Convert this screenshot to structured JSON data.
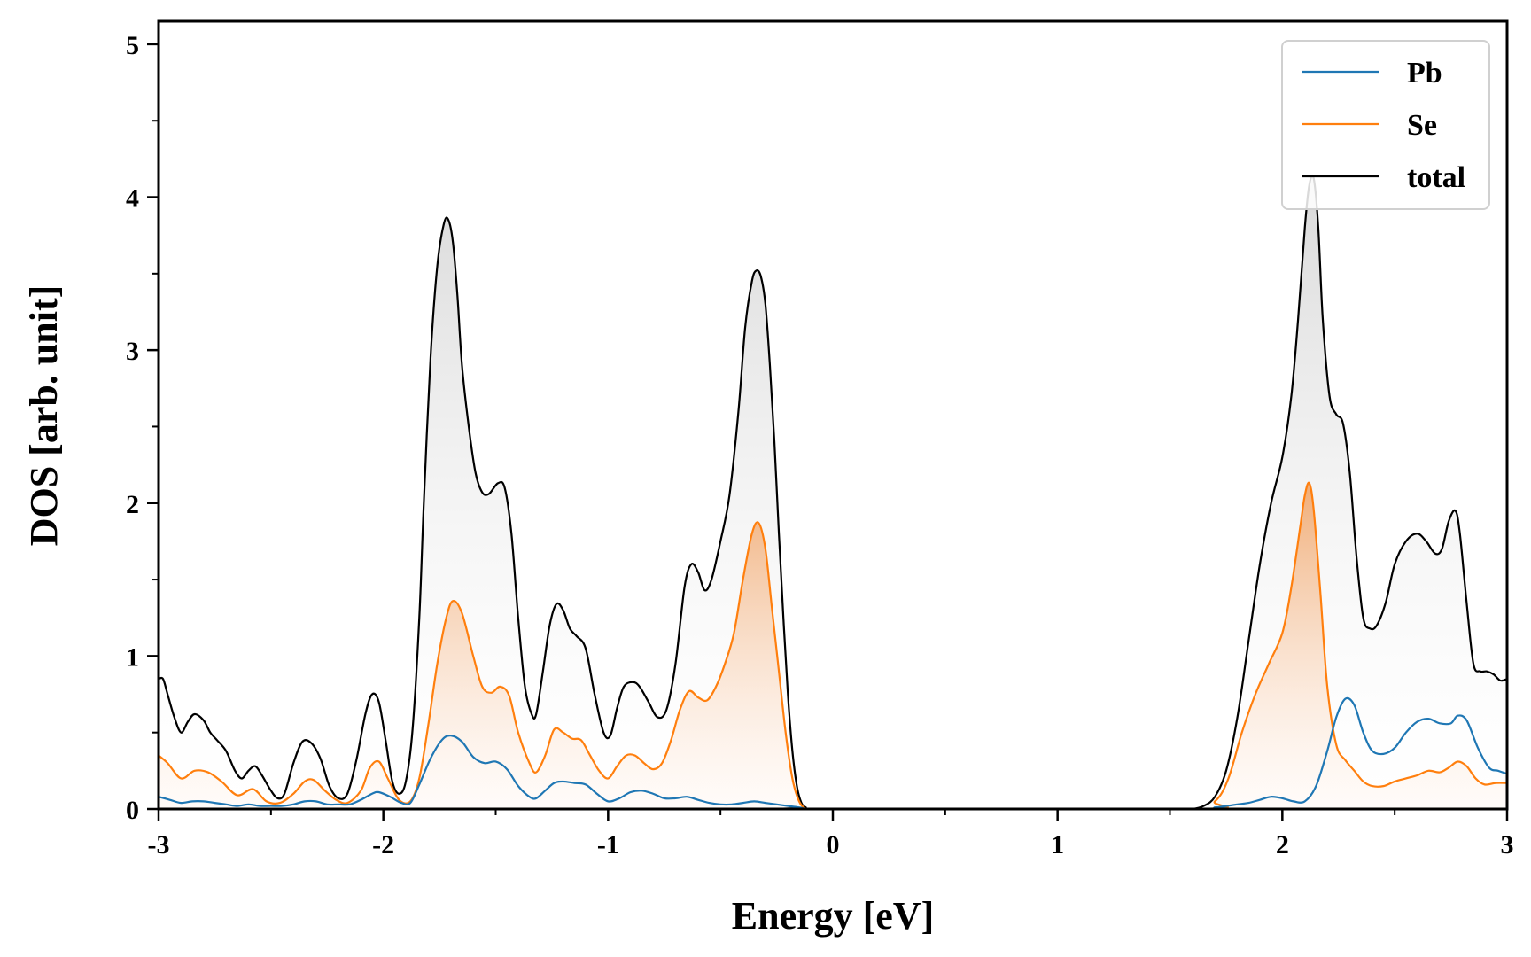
{
  "chart_data": {
    "type": "line",
    "title": "",
    "xlabel": "Energy [eV]",
    "ylabel": "DOS [arb. unit]",
    "xlim": [
      -3,
      3
    ],
    "ylim": [
      0,
      5.15
    ],
    "xticks": [
      -3,
      -2,
      -1,
      0,
      1,
      2,
      3
    ],
    "xtick_labels": [
      "-3",
      "-2",
      "-1",
      "0",
      "1",
      "2",
      "3"
    ],
    "yticks": [
      0,
      1,
      2,
      3,
      4,
      5
    ],
    "ytick_labels": [
      "0",
      "1",
      "2",
      "3",
      "4",
      "5"
    ],
    "grid": false,
    "legend_position": "top-right",
    "series": [
      {
        "name": "Pb",
        "color": "#1f77b4",
        "fill": false,
        "x": [
          -3.0,
          -2.95,
          -2.9,
          -2.85,
          -2.8,
          -2.75,
          -2.7,
          -2.65,
          -2.6,
          -2.55,
          -2.5,
          -2.45,
          -2.4,
          -2.35,
          -2.3,
          -2.25,
          -2.2,
          -2.15,
          -2.1,
          -2.05,
          -2.02,
          -1.97,
          -1.92,
          -1.88,
          -1.84,
          -1.79,
          -1.74,
          -1.7,
          -1.65,
          -1.6,
          -1.55,
          -1.5,
          -1.45,
          -1.4,
          -1.35,
          -1.32,
          -1.28,
          -1.24,
          -1.2,
          -1.15,
          -1.1,
          -1.05,
          -1.0,
          -0.95,
          -0.9,
          -0.85,
          -0.8,
          -0.75,
          -0.7,
          -0.65,
          -0.6,
          -0.55,
          -0.5,
          -0.45,
          -0.4,
          -0.35,
          -0.3,
          -0.25,
          -0.2,
          -0.15,
          -0.12,
          -0.1,
          1.6,
          1.7,
          1.8,
          1.85,
          1.9,
          1.95,
          2.0,
          2.05,
          2.1,
          2.15,
          2.2,
          2.24,
          2.28,
          2.32,
          2.36,
          2.4,
          2.45,
          2.5,
          2.55,
          2.6,
          2.65,
          2.7,
          2.75,
          2.78,
          2.82,
          2.87,
          2.92,
          2.96,
          3.0
        ],
        "y": [
          0.08,
          0.06,
          0.04,
          0.05,
          0.05,
          0.04,
          0.03,
          0.02,
          0.03,
          0.02,
          0.02,
          0.02,
          0.03,
          0.05,
          0.05,
          0.03,
          0.03,
          0.03,
          0.06,
          0.1,
          0.11,
          0.08,
          0.04,
          0.04,
          0.16,
          0.33,
          0.45,
          0.48,
          0.44,
          0.34,
          0.3,
          0.31,
          0.26,
          0.15,
          0.08,
          0.07,
          0.12,
          0.17,
          0.18,
          0.17,
          0.16,
          0.1,
          0.05,
          0.07,
          0.11,
          0.12,
          0.1,
          0.07,
          0.07,
          0.08,
          0.06,
          0.04,
          0.03,
          0.03,
          0.04,
          0.05,
          0.04,
          0.03,
          0.02,
          0.01,
          0.0,
          0.0,
          0.0,
          0.01,
          0.03,
          0.04,
          0.06,
          0.08,
          0.07,
          0.05,
          0.05,
          0.15,
          0.38,
          0.6,
          0.72,
          0.68,
          0.5,
          0.38,
          0.36,
          0.4,
          0.5,
          0.57,
          0.59,
          0.56,
          0.56,
          0.61,
          0.58,
          0.4,
          0.27,
          0.25,
          0.23
        ]
      },
      {
        "name": "Se",
        "color": "#ff7f0e",
        "fill": true,
        "x": [
          -3.0,
          -2.96,
          -2.9,
          -2.84,
          -2.78,
          -2.72,
          -2.65,
          -2.58,
          -2.52,
          -2.46,
          -2.4,
          -2.35,
          -2.31,
          -2.26,
          -2.21,
          -2.16,
          -2.1,
          -2.06,
          -2.02,
          -1.98,
          -1.93,
          -1.88,
          -1.84,
          -1.8,
          -1.76,
          -1.72,
          -1.69,
          -1.65,
          -1.6,
          -1.56,
          -1.52,
          -1.48,
          -1.44,
          -1.4,
          -1.35,
          -1.32,
          -1.28,
          -1.24,
          -1.2,
          -1.16,
          -1.12,
          -1.08,
          -1.04,
          -1.0,
          -0.96,
          -0.92,
          -0.88,
          -0.84,
          -0.8,
          -0.76,
          -0.72,
          -0.68,
          -0.64,
          -0.6,
          -0.56,
          -0.52,
          -0.48,
          -0.44,
          -0.4,
          -0.36,
          -0.33,
          -0.3,
          -0.27,
          -0.24,
          -0.21,
          -0.18,
          -0.15,
          -0.12,
          -0.1,
          1.6,
          1.7,
          1.76,
          1.82,
          1.88,
          1.94,
          2.0,
          2.04,
          2.08,
          2.1,
          2.12,
          2.14,
          2.17,
          2.2,
          2.24,
          2.28,
          2.32,
          2.36,
          2.4,
          2.45,
          2.5,
          2.55,
          2.6,
          2.65,
          2.7,
          2.74,
          2.78,
          2.82,
          2.86,
          2.9,
          2.95,
          3.0
        ],
        "y": [
          0.35,
          0.3,
          0.2,
          0.25,
          0.24,
          0.18,
          0.09,
          0.13,
          0.05,
          0.04,
          0.1,
          0.18,
          0.19,
          0.12,
          0.06,
          0.04,
          0.12,
          0.27,
          0.31,
          0.2,
          0.06,
          0.05,
          0.2,
          0.55,
          0.95,
          1.25,
          1.36,
          1.28,
          1.0,
          0.8,
          0.76,
          0.8,
          0.74,
          0.5,
          0.3,
          0.24,
          0.35,
          0.52,
          0.5,
          0.46,
          0.45,
          0.35,
          0.25,
          0.2,
          0.28,
          0.35,
          0.35,
          0.3,
          0.26,
          0.3,
          0.45,
          0.65,
          0.77,
          0.73,
          0.71,
          0.8,
          0.95,
          1.15,
          1.5,
          1.8,
          1.87,
          1.7,
          1.3,
          0.9,
          0.5,
          0.2,
          0.05,
          0.0,
          0.0,
          0.0,
          0.05,
          0.2,
          0.5,
          0.75,
          0.95,
          1.15,
          1.45,
          1.85,
          2.05,
          2.13,
          1.95,
          1.4,
          0.8,
          0.42,
          0.32,
          0.25,
          0.18,
          0.15,
          0.15,
          0.18,
          0.2,
          0.22,
          0.25,
          0.24,
          0.27,
          0.31,
          0.28,
          0.2,
          0.16,
          0.17,
          0.17
        ]
      },
      {
        "name": "total",
        "color": "#000000",
        "fill": true,
        "x": [
          -3.0,
          -2.98,
          -2.96,
          -2.93,
          -2.9,
          -2.87,
          -2.84,
          -2.8,
          -2.77,
          -2.74,
          -2.7,
          -2.66,
          -2.63,
          -2.6,
          -2.57,
          -2.54,
          -2.5,
          -2.47,
          -2.44,
          -2.4,
          -2.36,
          -2.32,
          -2.28,
          -2.24,
          -2.2,
          -2.16,
          -2.12,
          -2.08,
          -2.05,
          -2.02,
          -1.99,
          -1.96,
          -1.93,
          -1.9,
          -1.87,
          -1.84,
          -1.82,
          -1.79,
          -1.76,
          -1.73,
          -1.71,
          -1.69,
          -1.67,
          -1.65,
          -1.62,
          -1.59,
          -1.56,
          -1.53,
          -1.49,
          -1.46,
          -1.43,
          -1.4,
          -1.37,
          -1.34,
          -1.32,
          -1.29,
          -1.26,
          -1.23,
          -1.2,
          -1.17,
          -1.14,
          -1.1,
          -1.06,
          -1.02,
          -0.99,
          -0.96,
          -0.93,
          -0.89,
          -0.86,
          -0.82,
          -0.78,
          -0.74,
          -0.7,
          -0.66,
          -0.63,
          -0.6,
          -0.57,
          -0.54,
          -0.5,
          -0.46,
          -0.42,
          -0.39,
          -0.36,
          -0.34,
          -0.32,
          -0.3,
          -0.28,
          -0.26,
          -0.24,
          -0.22,
          -0.2,
          -0.18,
          -0.16,
          -0.14,
          -0.12,
          -0.1,
          1.55,
          1.6,
          1.65,
          1.7,
          1.75,
          1.8,
          1.85,
          1.9,
          1.95,
          2.0,
          2.04,
          2.07,
          2.1,
          2.12,
          2.14,
          2.16,
          2.18,
          2.21,
          2.24,
          2.27,
          2.3,
          2.33,
          2.36,
          2.39,
          2.42,
          2.46,
          2.5,
          2.55,
          2.6,
          2.64,
          2.68,
          2.71,
          2.74,
          2.77,
          2.79,
          2.82,
          2.85,
          2.88,
          2.91,
          2.94,
          2.97,
          3.0
        ],
        "y": [
          0.85,
          0.85,
          0.75,
          0.6,
          0.5,
          0.57,
          0.62,
          0.58,
          0.5,
          0.45,
          0.38,
          0.25,
          0.2,
          0.25,
          0.28,
          0.22,
          0.12,
          0.07,
          0.1,
          0.3,
          0.44,
          0.43,
          0.33,
          0.15,
          0.07,
          0.1,
          0.32,
          0.62,
          0.75,
          0.7,
          0.45,
          0.18,
          0.1,
          0.18,
          0.52,
          1.25,
          2.0,
          2.95,
          3.55,
          3.83,
          3.85,
          3.7,
          3.35,
          2.9,
          2.5,
          2.2,
          2.07,
          2.06,
          2.13,
          2.1,
          1.8,
          1.25,
          0.8,
          0.62,
          0.62,
          0.9,
          1.2,
          1.34,
          1.3,
          1.18,
          1.13,
          1.05,
          0.75,
          0.5,
          0.48,
          0.66,
          0.8,
          0.83,
          0.8,
          0.7,
          0.6,
          0.65,
          0.95,
          1.45,
          1.6,
          1.55,
          1.43,
          1.5,
          1.75,
          2.05,
          2.6,
          3.15,
          3.45,
          3.52,
          3.48,
          3.3,
          2.9,
          2.4,
          1.8,
          1.25,
          0.75,
          0.38,
          0.15,
          0.04,
          0.01,
          0.0,
          0.0,
          0.0,
          0.02,
          0.08,
          0.25,
          0.6,
          1.1,
          1.6,
          2.0,
          2.3,
          2.7,
          3.2,
          3.8,
          4.08,
          4.12,
          3.8,
          3.2,
          2.7,
          2.58,
          2.52,
          2.2,
          1.65,
          1.25,
          1.18,
          1.2,
          1.35,
          1.6,
          1.75,
          1.8,
          1.75,
          1.67,
          1.7,
          1.88,
          1.95,
          1.8,
          1.35,
          0.95,
          0.9,
          0.9,
          0.88,
          0.84,
          0.85
        ]
      }
    ]
  }
}
